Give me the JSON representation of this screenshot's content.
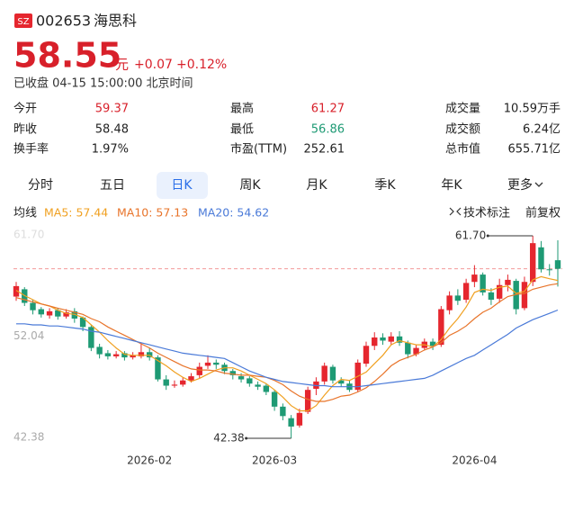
{
  "header": {
    "badge": "SZ",
    "code": "002653",
    "name": "海思科",
    "price": "58.55",
    "unit": "元",
    "change": "+0.07",
    "change_pct": "+0.12%",
    "status": "已收盘 04-15 15:00:00 北京时间"
  },
  "stats": {
    "rows": [
      [
        [
          "今开",
          "59.37"
        ],
        [
          "最高",
          "61.27"
        ],
        [
          "成交量",
          "10.59万手"
        ]
      ],
      [
        [
          "昨收",
          "58.48"
        ],
        [
          "最低",
          "56.86"
        ],
        [
          "成交额",
          "6.24亿"
        ]
      ],
      [
        [
          "换手率",
          "1.97%"
        ],
        [
          "市盈(TTM)",
          "252.61"
        ],
        [
          "总市值",
          "655.71亿"
        ]
      ]
    ]
  },
  "tabs": {
    "items": [
      "分时",
      "五日",
      "日K",
      "周K",
      "月K",
      "季K",
      "年K",
      "更多"
    ],
    "selected": "日K"
  },
  "toolbar": {
    "ma_title": "均线",
    "mark": "技术标注",
    "adjust": "前复权"
  },
  "chart_data": {
    "type": "candlestick",
    "up_color": "#e5262e",
    "down_color": "#1e9a74",
    "current_price": 58.55,
    "current_line_color": "#f29a9a",
    "ylim": [
      42.38,
      61.7
    ],
    "yticks": [
      {
        "value": 61.7,
        "label": "61.70"
      },
      52.04,
      42.38
    ],
    "xticks": [
      {
        "value": 16,
        "label": "2026-02"
      },
      {
        "value": 31,
        "label": "2026-03"
      },
      {
        "value": 55,
        "label": "2026-04"
      }
    ],
    "open": [
      55.9,
      56.6,
      55.3,
      54.7,
      54.1,
      54.6,
      54.0,
      54.5,
      53.9,
      53.0,
      51.1,
      50.5,
      50.2,
      50.5,
      50.1,
      50.2,
      50.6,
      50.1,
      48.0,
      47.4,
      47.5,
      47.9,
      48.4,
      49.3,
      49.6,
      49.4,
      48.8,
      48.3,
      48.1,
      47.5,
      47.4,
      46.8,
      45.4,
      44.3,
      43.6,
      44.9,
      47.1,
      47.8,
      49.2,
      47.9,
      47.6,
      47.0,
      49.5,
      51.2,
      52.0,
      51.6,
      52.1,
      51.5,
      50.4,
      51.0,
      51.6,
      51.3,
      54.6,
      56.0,
      55.6,
      57.3,
      58.0,
      56.3,
      55.7,
      57.0,
      57.4,
      54.8,
      57.3,
      60.6,
      58.5,
      59.37
    ],
    "close": [
      56.9,
      55.3,
      54.6,
      54.2,
      54.5,
      54.0,
      54.4,
      53.8,
      53.0,
      51.0,
      50.4,
      50.2,
      50.4,
      50.1,
      50.3,
      50.6,
      50.1,
      48.0,
      47.4,
      47.5,
      47.9,
      48.3,
      49.2,
      49.6,
      49.4,
      48.8,
      48.4,
      48.0,
      47.6,
      47.3,
      46.8,
      45.4,
      44.5,
      43.5,
      44.8,
      47.0,
      47.8,
      49.3,
      47.9,
      47.6,
      47.0,
      49.6,
      51.2,
      52.0,
      51.7,
      52.1,
      51.5,
      50.4,
      51.0,
      51.6,
      51.2,
      54.7,
      56.0,
      55.5,
      57.2,
      58.0,
      56.3,
      55.6,
      57.0,
      57.5,
      54.7,
      57.3,
      61.0,
      58.5,
      58.48,
      58.55
    ],
    "high": [
      57.3,
      56.8,
      55.6,
      54.9,
      54.8,
      54.8,
      54.7,
      54.8,
      54.0,
      53.2,
      51.4,
      50.8,
      50.7,
      50.7,
      50.6,
      51.5,
      51.0,
      50.3,
      48.4,
      47.9,
      48.2,
      48.6,
      49.6,
      50.3,
      49.9,
      49.6,
      49.0,
      48.6,
      48.3,
      47.8,
      47.6,
      47.0,
      45.7,
      44.6,
      45.2,
      47.3,
      48.2,
      49.6,
      49.4,
      48.2,
      47.9,
      49.9,
      51.6,
      52.5,
      52.4,
      52.5,
      52.6,
      51.7,
      51.3,
      51.9,
      51.9,
      55.0,
      56.4,
      56.6,
      57.6,
      58.9,
      58.2,
      56.7,
      57.6,
      58.0,
      57.6,
      57.8,
      61.7,
      61.2,
      59.0,
      61.27
    ],
    "low": [
      55.5,
      55.0,
      54.2,
      53.9,
      53.8,
      53.7,
      53.8,
      53.4,
      52.6,
      50.7,
      50.0,
      49.9,
      50.0,
      49.8,
      49.9,
      50.0,
      49.8,
      47.8,
      47.0,
      47.2,
      47.3,
      47.7,
      48.1,
      49.0,
      49.0,
      48.5,
      48.0,
      47.7,
      47.3,
      47.0,
      46.5,
      45.0,
      44.1,
      42.38,
      43.4,
      44.7,
      46.5,
      47.5,
      47.6,
      47.3,
      46.8,
      46.8,
      49.2,
      50.8,
      51.3,
      51.3,
      51.2,
      50.0,
      50.2,
      50.8,
      50.8,
      51.1,
      54.2,
      55.1,
      55.3,
      56.8,
      56.0,
      55.1,
      55.3,
      56.4,
      54.2,
      54.6,
      56.9,
      58.2,
      57.9,
      56.86
    ],
    "series": [
      {
        "name": "MA5: 57.44",
        "color": "#f0a020",
        "values": [
          56.5,
          56.0,
          55.6,
          55.2,
          55.0,
          54.6,
          54.3,
          54.2,
          53.9,
          53.2,
          52.5,
          51.7,
          51.0,
          50.4,
          50.3,
          50.3,
          50.3,
          49.8,
          49.3,
          48.7,
          48.2,
          47.8,
          48.1,
          48.5,
          48.9,
          49.1,
          49.1,
          48.8,
          48.4,
          48.0,
          47.6,
          47.0,
          46.3,
          45.5,
          45.0,
          45.0,
          45.5,
          46.5,
          47.4,
          48.0,
          47.9,
          48.3,
          48.7,
          49.5,
          50.3,
          51.3,
          51.7,
          51.5,
          51.3,
          51.3,
          51.1,
          51.8,
          52.9,
          53.8,
          54.9,
          56.3,
          56.6,
          56.5,
          56.8,
          56.9,
          56.2,
          56.4,
          57.5,
          57.8,
          57.6,
          57.44
        ]
      },
      {
        "name": "MA10: 57.13",
        "color": "#e8742a",
        "values": [
          55.8,
          55.6,
          55.4,
          55.2,
          55.0,
          54.8,
          54.6,
          54.4,
          54.2,
          53.8,
          53.5,
          53.0,
          52.6,
          52.2,
          51.8,
          51.4,
          51.0,
          50.5,
          50.1,
          49.7,
          49.3,
          49.0,
          48.9,
          48.9,
          48.8,
          48.6,
          48.5,
          48.4,
          48.4,
          48.3,
          48.2,
          47.9,
          47.5,
          46.9,
          46.4,
          46.1,
          45.9,
          45.9,
          46.1,
          46.4,
          46.5,
          46.8,
          47.2,
          47.8,
          48.5,
          49.3,
          49.8,
          50.1,
          50.4,
          50.8,
          51.1,
          51.5,
          52.2,
          52.6,
          53.1,
          53.8,
          54.4,
          54.8,
          55.4,
          55.9,
          56.1,
          56.2,
          56.6,
          56.8,
          57.0,
          57.13
        ]
      },
      {
        "name": "MA20: 54.62",
        "color": "#4a7ad8",
        "values": [
          53.3,
          53.3,
          53.2,
          53.2,
          53.1,
          53.1,
          53.0,
          52.9,
          52.8,
          52.6,
          52.5,
          52.3,
          52.1,
          51.9,
          51.7,
          51.5,
          51.3,
          51.1,
          50.9,
          50.7,
          50.5,
          50.4,
          50.3,
          50.2,
          50.1,
          50.0,
          49.6,
          49.2,
          48.8,
          48.5,
          48.2,
          48.0,
          47.8,
          47.7,
          47.6,
          47.5,
          47.4,
          47.4,
          47.3,
          47.3,
          47.3,
          47.3,
          47.4,
          47.5,
          47.6,
          47.7,
          47.8,
          47.9,
          48.0,
          48.1,
          48.4,
          48.8,
          49.2,
          49.6,
          50.0,
          50.3,
          50.8,
          51.3,
          51.8,
          52.3,
          52.9,
          53.3,
          53.7,
          54.0,
          54.3,
          54.62
        ]
      }
    ],
    "annotations": [
      {
        "value": 61.7,
        "label": "61.70"
      },
      {
        "value": 42.38,
        "label": "42.38"
      }
    ]
  }
}
